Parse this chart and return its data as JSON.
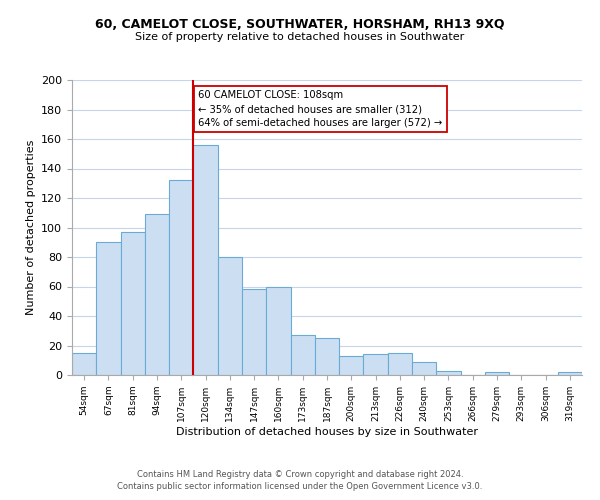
{
  "title1": "60, CAMELOT CLOSE, SOUTHWATER, HORSHAM, RH13 9XQ",
  "title2": "Size of property relative to detached houses in Southwater",
  "xlabel": "Distribution of detached houses by size in Southwater",
  "ylabel": "Number of detached properties",
  "bar_labels": [
    "54sqm",
    "67sqm",
    "81sqm",
    "94sqm",
    "107sqm",
    "120sqm",
    "134sqm",
    "147sqm",
    "160sqm",
    "173sqm",
    "187sqm",
    "200sqm",
    "213sqm",
    "226sqm",
    "240sqm",
    "253sqm",
    "266sqm",
    "279sqm",
    "293sqm",
    "306sqm",
    "319sqm"
  ],
  "bar_values": [
    15,
    90,
    97,
    109,
    132,
    156,
    80,
    58,
    60,
    27,
    25,
    13,
    14,
    15,
    9,
    3,
    0,
    2,
    0,
    0,
    2
  ],
  "bar_color": "#ccdff2",
  "bar_edge_color": "#6aaad4",
  "vline_color": "#cc0000",
  "annotation_title": "60 CAMELOT CLOSE: 108sqm",
  "annotation_line1": "← 35% of detached houses are smaller (312)",
  "annotation_line2": "64% of semi-detached houses are larger (572) →",
  "annotation_box_color": "#ffffff",
  "annotation_box_edge": "#cc0000",
  "ylim": [
    0,
    200
  ],
  "yticks": [
    0,
    20,
    40,
    60,
    80,
    100,
    120,
    140,
    160,
    180,
    200
  ],
  "footer1": "Contains HM Land Registry data © Crown copyright and database right 2024.",
  "footer2": "Contains public sector information licensed under the Open Government Licence v3.0.",
  "bg_color": "#ffffff",
  "grid_color": "#c8d4e8"
}
